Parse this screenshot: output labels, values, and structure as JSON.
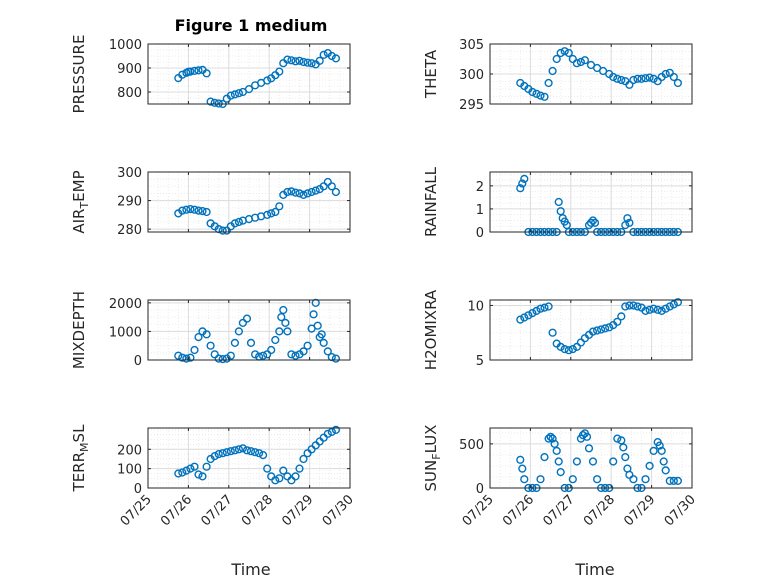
{
  "figure": {
    "title": "Figure 1 medium",
    "xlabel": "Time",
    "x_ticks": [
      "07/25",
      "07/26",
      "07/27",
      "07/28",
      "07/29",
      "07/30"
    ]
  },
  "colors": {
    "marker": "#0072bd",
    "axis": "#262626",
    "grid": "#dcdcdc"
  },
  "chart_data": [
    {
      "type": "scatter",
      "ylabel": "PRESSURE",
      "ylabel_sub": "",
      "ylabel_suffix": "",
      "ylim": [
        750,
        1000
      ],
      "yticks": [
        800,
        900,
        1000
      ],
      "xlim": [
        0,
        5
      ],
      "grid": true,
      "x": [
        0.75,
        0.85,
        0.95,
        1.0,
        1.05,
        1.15,
        1.25,
        1.35,
        1.45,
        1.55,
        1.65,
        1.75,
        1.85,
        1.95,
        2.05,
        2.15,
        2.25,
        2.35,
        2.5,
        2.65,
        2.8,
        2.95,
        3.05,
        3.15,
        3.25,
        3.35,
        3.45,
        3.55,
        3.65,
        3.75,
        3.85,
        3.95,
        4.05,
        4.15,
        4.25,
        4.35,
        4.45,
        4.55,
        4.65
      ],
      "y": [
        858,
        872,
        880,
        884,
        885,
        888,
        890,
        892,
        878,
        760,
        755,
        752,
        750,
        772,
        785,
        790,
        795,
        800,
        812,
        828,
        838,
        848,
        857,
        870,
        885,
        920,
        935,
        932,
        928,
        930,
        925,
        922,
        920,
        915,
        930,
        955,
        962,
        950,
        940
      ]
    },
    {
      "type": "scatter",
      "ylabel": "THETA",
      "ylabel_sub": "",
      "ylabel_suffix": "",
      "ylim": [
        295,
        305
      ],
      "yticks": [
        295,
        300,
        305
      ],
      "xlim": [
        0,
        5
      ],
      "grid": true,
      "x": [
        0.75,
        0.85,
        0.95,
        1.05,
        1.15,
        1.25,
        1.35,
        1.45,
        1.55,
        1.65,
        1.75,
        1.85,
        1.95,
        2.05,
        2.15,
        2.25,
        2.35,
        2.5,
        2.65,
        2.8,
        2.95,
        3.05,
        3.15,
        3.25,
        3.35,
        3.45,
        3.55,
        3.65,
        3.75,
        3.85,
        3.95,
        4.05,
        4.15,
        4.25,
        4.35,
        4.45,
        4.55,
        4.65
      ],
      "y": [
        298.5,
        298,
        297.5,
        297,
        296.7,
        296.4,
        296.2,
        298.5,
        300.5,
        302.5,
        303.5,
        303.8,
        303.5,
        302.5,
        301.8,
        302,
        302.3,
        301.5,
        301,
        300.5,
        300,
        299.5,
        299.2,
        299,
        298.8,
        298.2,
        299,
        299.2,
        299.2,
        299.3,
        299.4,
        299.2,
        298.8,
        299.5,
        300,
        300.2,
        299.5,
        298.5
      ]
    },
    {
      "type": "scatter",
      "ylabel": "AIR",
      "ylabel_sub": "T",
      "ylabel_suffix": "EMP",
      "ylim": [
        279,
        300
      ],
      "yticks": [
        280,
        290,
        300
      ],
      "xlim": [
        0,
        5
      ],
      "grid": true,
      "x": [
        0.75,
        0.85,
        0.95,
        1.05,
        1.15,
        1.25,
        1.35,
        1.45,
        1.55,
        1.65,
        1.75,
        1.85,
        1.95,
        2.05,
        2.15,
        2.25,
        2.35,
        2.5,
        2.65,
        2.8,
        2.95,
        3.05,
        3.15,
        3.25,
        3.35,
        3.45,
        3.55,
        3.65,
        3.75,
        3.85,
        3.95,
        4.05,
        4.15,
        4.25,
        4.35,
        4.45,
        4.55,
        4.65
      ],
      "y": [
        285.5,
        286.5,
        286.8,
        287,
        286.8,
        286.5,
        286.3,
        286,
        282,
        281,
        280,
        279.5,
        279.5,
        281,
        282,
        282.5,
        283,
        283.5,
        284,
        284.5,
        285,
        285.5,
        286,
        288,
        292,
        293,
        293.2,
        292.8,
        292.5,
        292,
        292.5,
        293,
        293.5,
        294,
        295,
        296.5,
        295,
        293
      ]
    },
    {
      "type": "scatter",
      "ylabel": "RAINFALL",
      "ylabel_sub": "",
      "ylabel_suffix": "",
      "ylim": [
        0,
        2.6
      ],
      "yticks": [
        0,
        1,
        2
      ],
      "xlim": [
        0,
        5
      ],
      "grid": true,
      "x": [
        0.75,
        0.8,
        0.85,
        0.95,
        1.05,
        1.15,
        1.25,
        1.35,
        1.45,
        1.55,
        1.65,
        1.7,
        1.75,
        1.8,
        1.85,
        1.9,
        1.95,
        2.05,
        2.15,
        2.25,
        2.35,
        2.45,
        2.5,
        2.55,
        2.6,
        2.65,
        2.75,
        2.85,
        2.95,
        3.05,
        3.15,
        3.25,
        3.35,
        3.4,
        3.45,
        3.55,
        3.65,
        3.75,
        3.85,
        3.95,
        4.05,
        4.15,
        4.25,
        4.35,
        4.45,
        4.55,
        4.65
      ],
      "y": [
        1.9,
        2.1,
        2.3,
        0,
        0,
        0,
        0,
        0,
        0,
        0,
        0,
        1.3,
        0.9,
        0.6,
        0.45,
        0.3,
        0,
        0,
        0,
        0,
        0,
        0.3,
        0.4,
        0.5,
        0.4,
        0,
        0,
        0,
        0,
        0,
        0,
        0,
        0.3,
        0.6,
        0.4,
        0,
        0,
        0,
        0,
        0,
        0,
        0,
        0,
        0,
        0,
        0,
        0
      ]
    },
    {
      "type": "scatter",
      "ylabel": "MIXDEPTH",
      "ylabel_sub": "",
      "ylabel_suffix": "",
      "ylim": [
        0,
        2100
      ],
      "yticks": [
        0,
        1000,
        2000
      ],
      "xlim": [
        0,
        5
      ],
      "grid": true,
      "x": [
        0.75,
        0.85,
        0.95,
        1.05,
        1.15,
        1.25,
        1.35,
        1.45,
        1.55,
        1.65,
        1.75,
        1.85,
        1.95,
        2.05,
        2.15,
        2.25,
        2.35,
        2.45,
        2.55,
        2.65,
        2.75,
        2.85,
        2.95,
        3.05,
        3.15,
        3.25,
        3.3,
        3.35,
        3.4,
        3.45,
        3.55,
        3.65,
        3.75,
        3.85,
        3.95,
        4.05,
        4.1,
        4.15,
        4.2,
        4.25,
        4.3,
        4.35,
        4.45,
        4.55,
        4.65
      ],
      "y": [
        150,
        80,
        50,
        80,
        350,
        800,
        1000,
        900,
        500,
        200,
        50,
        30,
        50,
        150,
        600,
        1000,
        1300,
        1450,
        600,
        200,
        120,
        150,
        200,
        350,
        700,
        1000,
        1500,
        1750,
        1300,
        1000,
        200,
        150,
        200,
        300,
        500,
        1100,
        1600,
        2000,
        1200,
        800,
        900,
        600,
        300,
        100,
        50
      ]
    },
    {
      "type": "scatter",
      "ylabel": "H2OMIXRA",
      "ylabel_sub": "",
      "ylabel_suffix": "",
      "ylim": [
        5,
        10.5
      ],
      "yticks": [
        5,
        10
      ],
      "xlim": [
        0,
        5
      ],
      "grid": true,
      "x": [
        0.75,
        0.85,
        0.95,
        1.05,
        1.15,
        1.25,
        1.35,
        1.45,
        1.55,
        1.65,
        1.75,
        1.85,
        1.95,
        2.05,
        2.15,
        2.25,
        2.35,
        2.45,
        2.55,
        2.65,
        2.75,
        2.85,
        2.95,
        3.05,
        3.15,
        3.25,
        3.35,
        3.45,
        3.55,
        3.65,
        3.75,
        3.85,
        3.95,
        4.05,
        4.15,
        4.25,
        4.35,
        4.45,
        4.55,
        4.65
      ],
      "y": [
        8.7,
        8.9,
        9.1,
        9.3,
        9.5,
        9.7,
        9.8,
        9.9,
        7.5,
        6.5,
        6.2,
        6.0,
        5.9,
        6.0,
        6.2,
        6.6,
        7.0,
        7.3,
        7.6,
        7.7,
        7.8,
        7.9,
        8.0,
        8.2,
        8.5,
        9.0,
        9.9,
        10.0,
        10.0,
        9.9,
        9.8,
        9.5,
        9.6,
        9.7,
        9.6,
        9.5,
        9.7,
        9.9,
        10.1,
        10.3
      ]
    },
    {
      "type": "scatter",
      "ylabel": "TERR",
      "ylabel_sub": "M",
      "ylabel_suffix": "SL",
      "ylim": [
        0,
        310
      ],
      "yticks": [
        0,
        100,
        200
      ],
      "xlim": [
        0,
        5
      ],
      "grid": true,
      "x": [
        0.75,
        0.85,
        0.95,
        1.05,
        1.15,
        1.25,
        1.35,
        1.45,
        1.55,
        1.65,
        1.75,
        1.85,
        1.95,
        2.05,
        2.15,
        2.25,
        2.35,
        2.45,
        2.55,
        2.65,
        2.75,
        2.85,
        2.95,
        3.05,
        3.15,
        3.25,
        3.35,
        3.45,
        3.55,
        3.65,
        3.75,
        3.85,
        3.95,
        4.05,
        4.15,
        4.25,
        4.35,
        4.45,
        4.55,
        4.65
      ],
      "y": [
        75,
        80,
        90,
        100,
        110,
        70,
        60,
        110,
        150,
        165,
        175,
        180,
        185,
        190,
        195,
        200,
        205,
        195,
        190,
        185,
        180,
        170,
        100,
        60,
        40,
        50,
        90,
        60,
        40,
        60,
        100,
        150,
        180,
        200,
        220,
        240,
        260,
        280,
        290,
        300
      ]
    },
    {
      "type": "scatter",
      "ylabel": "SUN",
      "ylabel_sub": "F",
      "ylabel_suffix": "LUX",
      "ylim": [
        0,
        680
      ],
      "yticks": [
        0,
        500
      ],
      "xlim": [
        0,
        5
      ],
      "grid": true,
      "x": [
        0.75,
        0.8,
        0.85,
        0.95,
        1.05,
        1.15,
        1.25,
        1.35,
        1.45,
        1.5,
        1.55,
        1.6,
        1.65,
        1.7,
        1.75,
        1.85,
        1.95,
        2.05,
        2.15,
        2.25,
        2.3,
        2.35,
        2.4,
        2.45,
        2.55,
        2.65,
        2.75,
        2.85,
        2.95,
        3.05,
        3.15,
        3.25,
        3.3,
        3.35,
        3.4,
        3.45,
        3.55,
        3.65,
        3.75,
        3.85,
        3.95,
        4.05,
        4.15,
        4.2,
        4.25,
        4.3,
        4.35,
        4.45,
        4.55,
        4.65
      ],
      "y": [
        320,
        220,
        100,
        0,
        0,
        0,
        100,
        350,
        560,
        580,
        560,
        500,
        420,
        300,
        180,
        0,
        0,
        100,
        300,
        560,
        600,
        620,
        580,
        450,
        300,
        100,
        0,
        0,
        0,
        300,
        560,
        540,
        460,
        350,
        220,
        150,
        100,
        0,
        0,
        100,
        250,
        420,
        520,
        480,
        420,
        300,
        200,
        80,
        80,
        80
      ]
    }
  ]
}
